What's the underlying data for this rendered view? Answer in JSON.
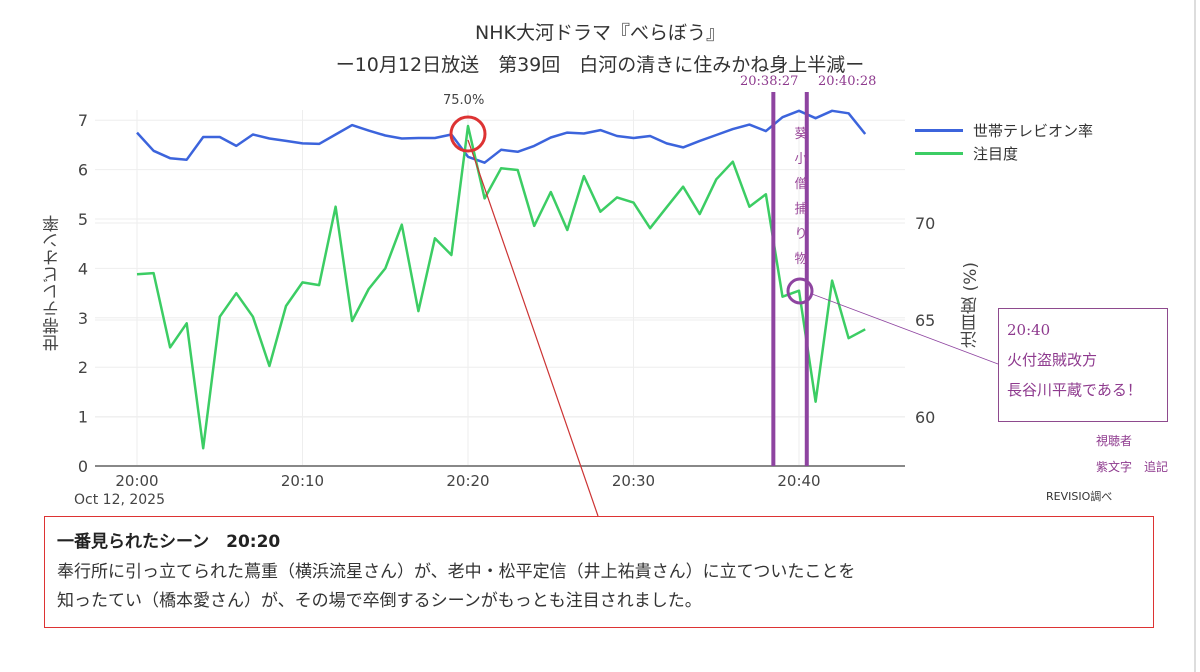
{
  "chart_data": {
    "type": "line",
    "title": "NHK大河ドラマ『べらぼう』",
    "subtitle": "ー10月12日放送　第39回　白河の清きに住みかね身上半減ー",
    "x_start": "20:00",
    "x_step_minutes": 1,
    "x_ticks": [
      "20:00",
      "20:10",
      "20:20",
      "20:30",
      "20:40"
    ],
    "x_date_label": "Oct 12, 2025",
    "ylabel_left": "世帯テレビオン率",
    "ylabel_right": "注目度 (%)",
    "ylim_left": [
      0,
      7.3
    ],
    "yticks_left": [
      0,
      1,
      2,
      3,
      4,
      5,
      6,
      7
    ],
    "ylim_right": [
      57.7,
      75.5
    ],
    "yticks_right": [
      60,
      65,
      70
    ],
    "legend_position": "top-right",
    "series": [
      {
        "name": "世帯テレビオン率",
        "axis": "left",
        "color": "#3c64dc",
        "values": [
          6.75,
          6.38,
          6.23,
          6.2,
          6.66,
          6.66,
          6.48,
          6.71,
          6.63,
          6.58,
          6.53,
          6.52,
          6.71,
          6.9,
          6.79,
          6.69,
          6.63,
          6.64,
          6.64,
          6.71,
          6.26,
          6.14,
          6.4,
          6.36,
          6.48,
          6.65,
          6.75,
          6.73,
          6.8,
          6.68,
          6.64,
          6.68,
          6.53,
          6.45,
          6.58,
          6.7,
          6.82,
          6.91,
          6.78,
          7.06,
          7.19,
          7.04,
          7.19,
          7.14,
          6.72
        ]
      },
      {
        "name": "注目度",
        "axis": "right",
        "color": "#3ccd64",
        "values": [
          67.36,
          67.42,
          63.59,
          64.83,
          58.39,
          65.17,
          66.38,
          65.17,
          62.63,
          65.72,
          66.94,
          66.8,
          70.84,
          64.95,
          66.6,
          67.66,
          69.91,
          65.46,
          69.21,
          68.35,
          75.0,
          71.27,
          72.82,
          72.73,
          69.85,
          71.6,
          69.64,
          72.42,
          70.58,
          71.32,
          71.05,
          69.73,
          70.81,
          71.87,
          70.46,
          72.25,
          73.16,
          70.84,
          71.48,
          66.2,
          66.51,
          60.79,
          67.03,
          64.06,
          64.52
        ]
      }
    ],
    "annotations": {
      "peak_label": "75.0%",
      "marker_start": "20:38:27",
      "marker_end": "20:40:28",
      "marker_start_minutes": 38.45,
      "marker_end_minutes": 40.47,
      "segment_label": "葵小僧捕り物",
      "callout_time": "20:40",
      "callout_line1": "火付盗賊改方",
      "callout_line2": "長谷川平蔵である！",
      "note_line1": "視聴者",
      "note_line2": "紫文字　追記",
      "source": "REVISIO調べ"
    }
  },
  "scene": {
    "heading": "一番見られたシーン　20:20",
    "line1": "奉行所に引っ立てられた蔦重（横浜流星さん）が、老中・松平定信（井上祐貴さん）に立てついたことを",
    "line2": "知ったてい（橋本愛さん）が、その場で卒倒するシーンがもっとも注目されました。"
  }
}
